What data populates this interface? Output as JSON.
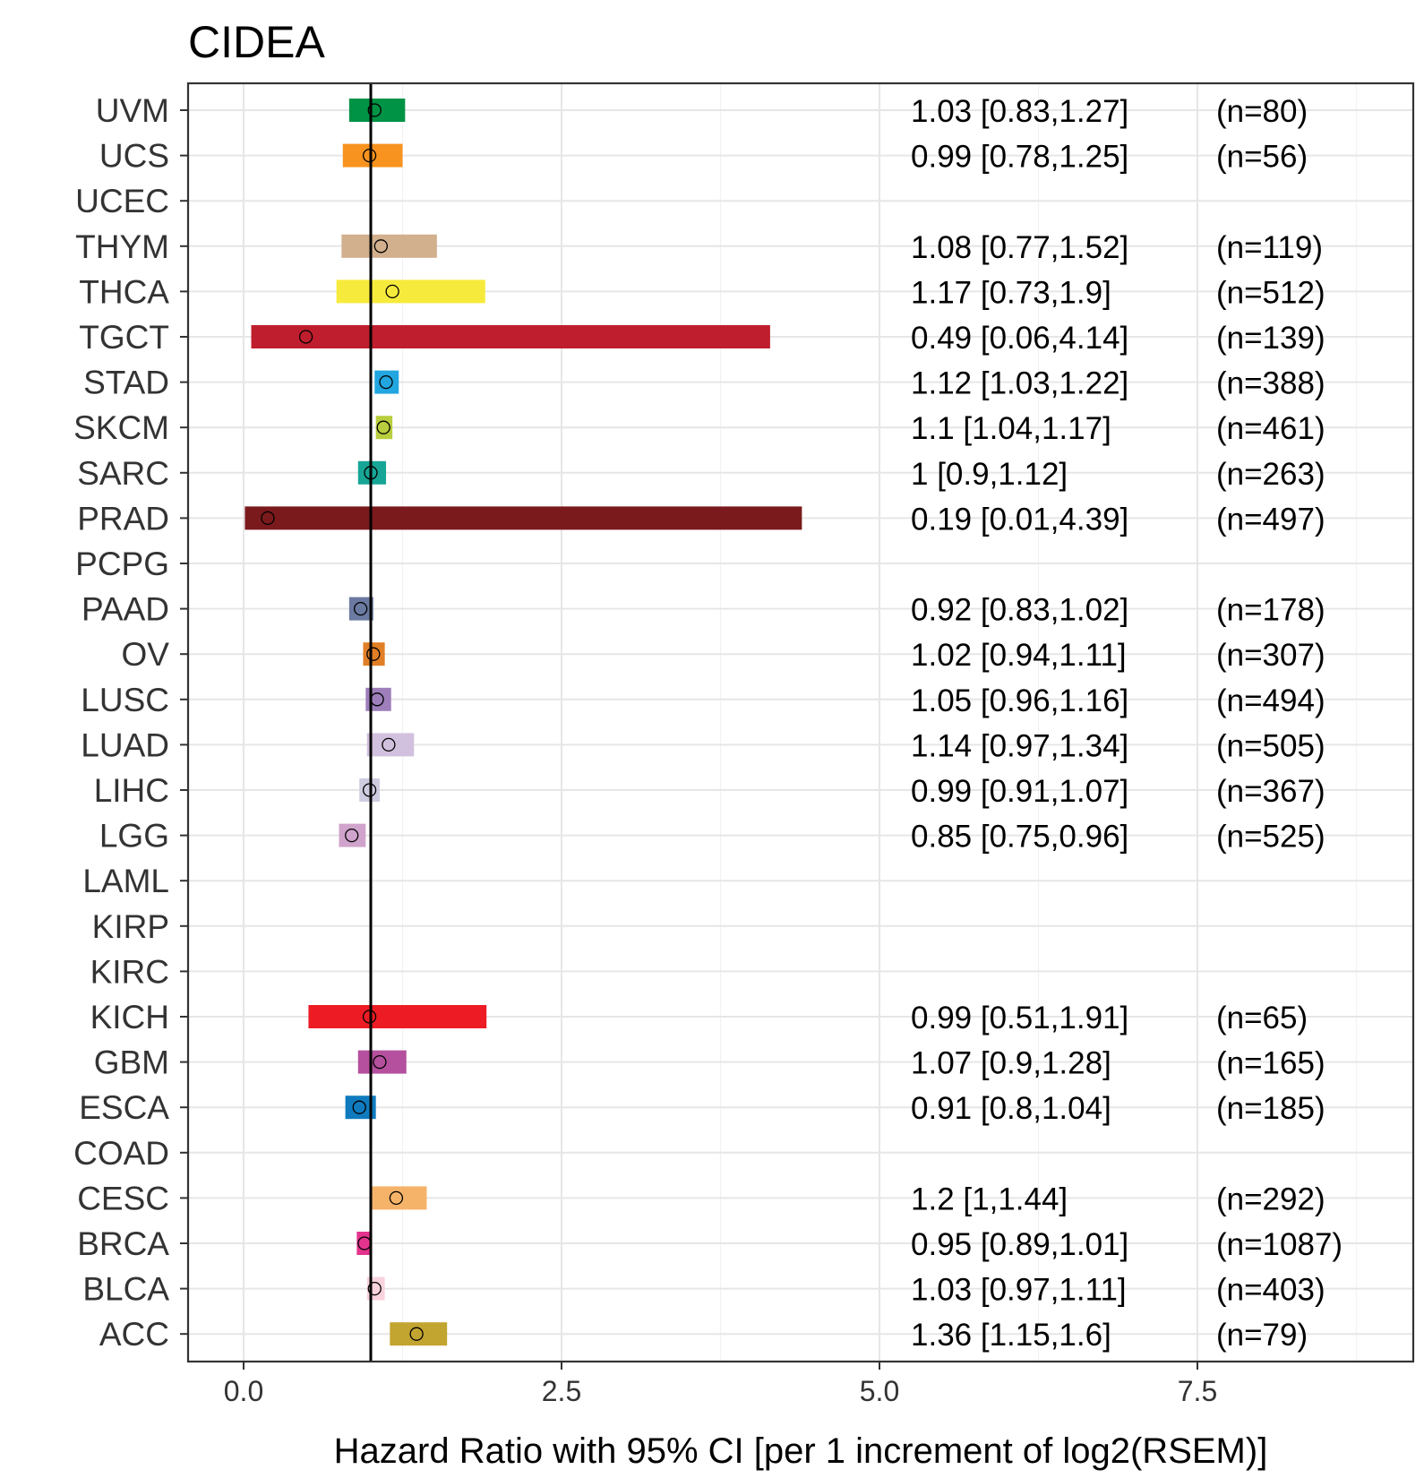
{
  "chart_data": {
    "type": "forest",
    "title": "CIDEA",
    "xlabel": "Hazard Ratio with 95% CI [per 1 increment of log2(RSEM)]",
    "ylabel": "",
    "xlim": [
      -0.2,
      9.0
    ],
    "x_ticks": [
      0.0,
      2.5,
      5.0,
      7.5
    ],
    "x_tick_labels": [
      "0.0",
      "2.5",
      "5.0",
      "7.5"
    ],
    "reference_line": 1,
    "grid": true,
    "rows": [
      {
        "cancer": "UVM",
        "hr": 1.03,
        "lo": 0.83,
        "hi": 1.27,
        "label": "1.03 [0.83,1.27]",
        "n": "(n=80)",
        "color": "#009245"
      },
      {
        "cancer": "UCS",
        "hr": 0.99,
        "lo": 0.78,
        "hi": 1.25,
        "label": "0.99 [0.78,1.25]",
        "n": "(n=56)",
        "color": "#F7931E"
      },
      {
        "cancer": "UCEC",
        "hr": null,
        "lo": null,
        "hi": null,
        "label": "",
        "n": "",
        "color": "#ffffff"
      },
      {
        "cancer": "THYM",
        "hr": 1.08,
        "lo": 0.77,
        "hi": 1.52,
        "label": "1.08 [0.77,1.52]",
        "n": "(n=119)",
        "color": "#D2AF8D"
      },
      {
        "cancer": "THCA",
        "hr": 1.17,
        "lo": 0.73,
        "hi": 1.9,
        "label": "1.17 [0.73,1.9]",
        "n": "(n=512)",
        "color": "#F6EB3C"
      },
      {
        "cancer": "TGCT",
        "hr": 0.49,
        "lo": 0.06,
        "hi": 4.14,
        "label": "0.49 [0.06,4.14]",
        "n": "(n=139)",
        "color": "#BE1E2D"
      },
      {
        "cancer": "STAD",
        "hr": 1.12,
        "lo": 1.03,
        "hi": 1.22,
        "label": "1.12 [1.03,1.22]",
        "n": "(n=388)",
        "color": "#21A6E0"
      },
      {
        "cancer": "SKCM",
        "hr": 1.1,
        "lo": 1.04,
        "hi": 1.17,
        "label": "1.1 [1.04,1.17]",
        "n": "(n=461)",
        "color": "#B8CE3E"
      },
      {
        "cancer": "SARC",
        "hr": 1,
        "lo": 0.9,
        "hi": 1.12,
        "label": "1 [0.9,1.12]",
        "n": "(n=263)",
        "color": "#17A596"
      },
      {
        "cancer": "PRAD",
        "hr": 0.19,
        "lo": 0.01,
        "hi": 4.39,
        "label": "0.19 [0.01,4.39]",
        "n": "(n=497)",
        "color": "#7A1A1C"
      },
      {
        "cancer": "PCPG",
        "hr": null,
        "lo": null,
        "hi": null,
        "label": "",
        "n": "",
        "color": "#ffffff"
      },
      {
        "cancer": "PAAD",
        "hr": 0.92,
        "lo": 0.83,
        "hi": 1.02,
        "label": "0.92 [0.83,1.02]",
        "n": "(n=178)",
        "color": "#6B7AA1"
      },
      {
        "cancer": "OV",
        "hr": 1.02,
        "lo": 0.94,
        "hi": 1.11,
        "label": "1.02 [0.94,1.11]",
        "n": "(n=307)",
        "color": "#E07F25"
      },
      {
        "cancer": "LUSC",
        "hr": 1.05,
        "lo": 0.96,
        "hi": 1.16,
        "label": "1.05 [0.96,1.16]",
        "n": "(n=494)",
        "color": "#9E7FBB"
      },
      {
        "cancer": "LUAD",
        "hr": 1.14,
        "lo": 0.97,
        "hi": 1.34,
        "label": "1.14 [0.97,1.34]",
        "n": "(n=505)",
        "color": "#D2C1DE"
      },
      {
        "cancer": "LIHC",
        "hr": 0.99,
        "lo": 0.91,
        "hi": 1.07,
        "label": "0.99 [0.91,1.07]",
        "n": "(n=367)",
        "color": "#CECCE0"
      },
      {
        "cancer": "LGG",
        "hr": 0.85,
        "lo": 0.75,
        "hi": 0.96,
        "label": "0.85 [0.75,0.96]",
        "n": "(n=525)",
        "color": "#D0A3CC"
      },
      {
        "cancer": "LAML",
        "hr": null,
        "lo": null,
        "hi": null,
        "label": "",
        "n": "",
        "color": "#ffffff"
      },
      {
        "cancer": "KIRP",
        "hr": null,
        "lo": null,
        "hi": null,
        "label": "",
        "n": "",
        "color": "#ffffff"
      },
      {
        "cancer": "KIRC",
        "hr": null,
        "lo": null,
        "hi": null,
        "label": "",
        "n": "",
        "color": "#ffffff"
      },
      {
        "cancer": "KICH",
        "hr": 0.99,
        "lo": 0.51,
        "hi": 1.91,
        "label": "0.99 [0.51,1.91]",
        "n": "(n=65)",
        "color": "#ED1C24"
      },
      {
        "cancer": "GBM",
        "hr": 1.07,
        "lo": 0.9,
        "hi": 1.28,
        "label": "1.07 [0.9,1.28]",
        "n": "(n=165)",
        "color": "#B4509D"
      },
      {
        "cancer": "ESCA",
        "hr": 0.91,
        "lo": 0.8,
        "hi": 1.04,
        "label": "0.91 [0.8,1.04]",
        "n": "(n=185)",
        "color": "#0F7BBE"
      },
      {
        "cancer": "COAD",
        "hr": null,
        "lo": null,
        "hi": null,
        "label": "",
        "n": "",
        "color": "#ffffff"
      },
      {
        "cancer": "CESC",
        "hr": 1.2,
        "lo": 1,
        "hi": 1.44,
        "label": "1.2 [1,1.44]",
        "n": "(n=292)",
        "color": "#F5B36A"
      },
      {
        "cancer": "BRCA",
        "hr": 0.95,
        "lo": 0.89,
        "hi": 1.01,
        "label": "0.95 [0.89,1.01]",
        "n": "(n=1087)",
        "color": "#E4338C"
      },
      {
        "cancer": "BLCA",
        "hr": 1.03,
        "lo": 0.97,
        "hi": 1.11,
        "label": "1.03 [0.97,1.11]",
        "n": "(n=403)",
        "color": "#F8D3DD"
      },
      {
        "cancer": "ACC",
        "hr": 1.36,
        "lo": 1.15,
        "hi": 1.6,
        "label": "1.36 [1.15,1.6]",
        "n": "(n=79)",
        "color": "#C2A431"
      }
    ]
  }
}
